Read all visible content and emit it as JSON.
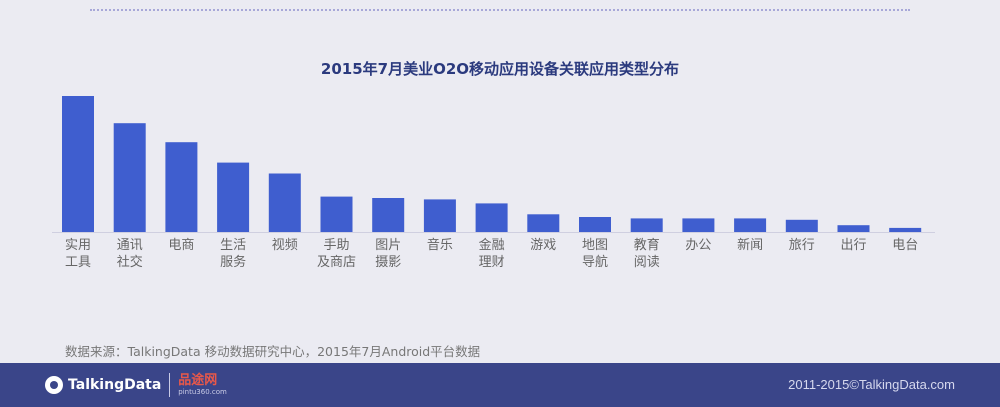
{
  "chart_data": {
    "type": "bar",
    "title": "2015年7月美业O2O移动应用设备关联应用类型分布",
    "categories": [
      [
        "实用",
        "工具"
      ],
      [
        "通讯",
        "社交"
      ],
      [
        "电商"
      ],
      [
        "生活",
        "服务"
      ],
      [
        "视频"
      ],
      [
        "手助",
        "及商店"
      ],
      [
        "图片",
        "摄影"
      ],
      [
        "音乐"
      ],
      [
        "金融",
        "理财"
      ],
      [
        "游戏"
      ],
      [
        "地图",
        "导航"
      ],
      [
        "教育",
        "阅读"
      ],
      [
        "办公"
      ],
      [
        "新闻"
      ],
      [
        "旅行"
      ],
      [
        "出行"
      ],
      [
        "电台"
      ]
    ],
    "values": [
      100,
      80,
      66,
      51,
      43,
      26,
      25,
      24,
      21,
      13,
      11,
      10,
      10,
      10,
      9,
      5,
      3
    ],
    "ylim": [
      0,
      100
    ],
    "grid": false,
    "legend": "none",
    "bar_color": "#3f5ecf",
    "axis_color": "#cfcfe0",
    "label_color": "#666666"
  },
  "source_text": "数据来源：TalkingData 移动数据研究中心，2015年7月Android平台数据",
  "footer": {
    "logo_text": "TalkingData",
    "watermark": "品途网",
    "watermark_sub": "pintu360.com",
    "copyright": "2011-2015©TalkingData.com"
  }
}
